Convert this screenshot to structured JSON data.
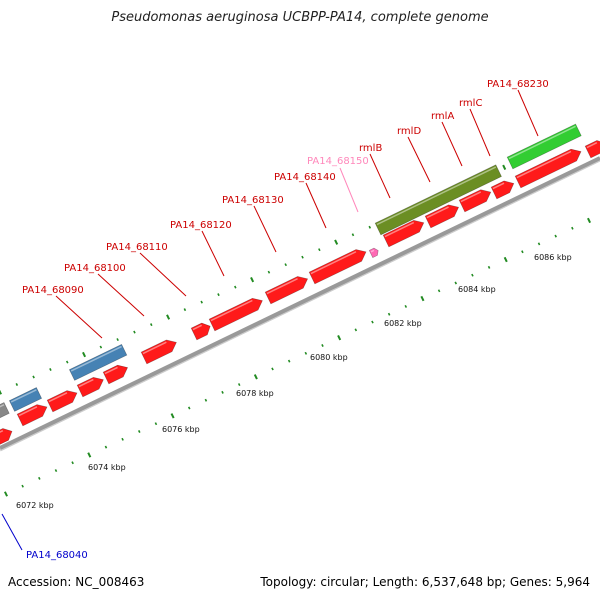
{
  "title": "Pseudomonas aeruginosa UCBPP-PA14, complete genome",
  "footer": {
    "accession": "Accession: NC_008463",
    "summary": "Topology: circular; Length: 6,537,648 bp; Genes: 5,964"
  },
  "colors": {
    "gene_red": "#ff1a1a",
    "blue": "#4682b4",
    "olive": "#6b8e23",
    "green": "#32cd32",
    "pink": "#ff69b4",
    "label_red": "#cc0000",
    "label_pink": "#ff88bb",
    "label_blue": "#0000cc",
    "tick_green": "#228b22",
    "axis_gray": "#999999"
  },
  "scale_labels": [
    "6072 kbp",
    "6074 kbp",
    "6076 kbp",
    "6078 kbp",
    "6080 kbp",
    "6082 kbp",
    "6084 kbp",
    "6086 kbp"
  ],
  "gene_labels": [
    {
      "text": "PA14_68090",
      "color": "label_red"
    },
    {
      "text": "PA14_68100",
      "color": "label_red"
    },
    {
      "text": "PA14_68110",
      "color": "label_red"
    },
    {
      "text": "PA14_68120",
      "color": "label_red"
    },
    {
      "text": "PA14_68130",
      "color": "label_red"
    },
    {
      "text": "PA14_68140",
      "color": "label_red"
    },
    {
      "text": "PA14_68150",
      "color": "label_pink"
    },
    {
      "text": "rmlB",
      "color": "label_red"
    },
    {
      "text": "rmlD",
      "color": "label_red"
    },
    {
      "text": "rmlA",
      "color": "label_red"
    },
    {
      "text": "rmlC",
      "color": "label_red"
    },
    {
      "text": "PA14_68230",
      "color": "label_red"
    },
    {
      "text": "PA14_68040",
      "color": "label_blue"
    }
  ]
}
